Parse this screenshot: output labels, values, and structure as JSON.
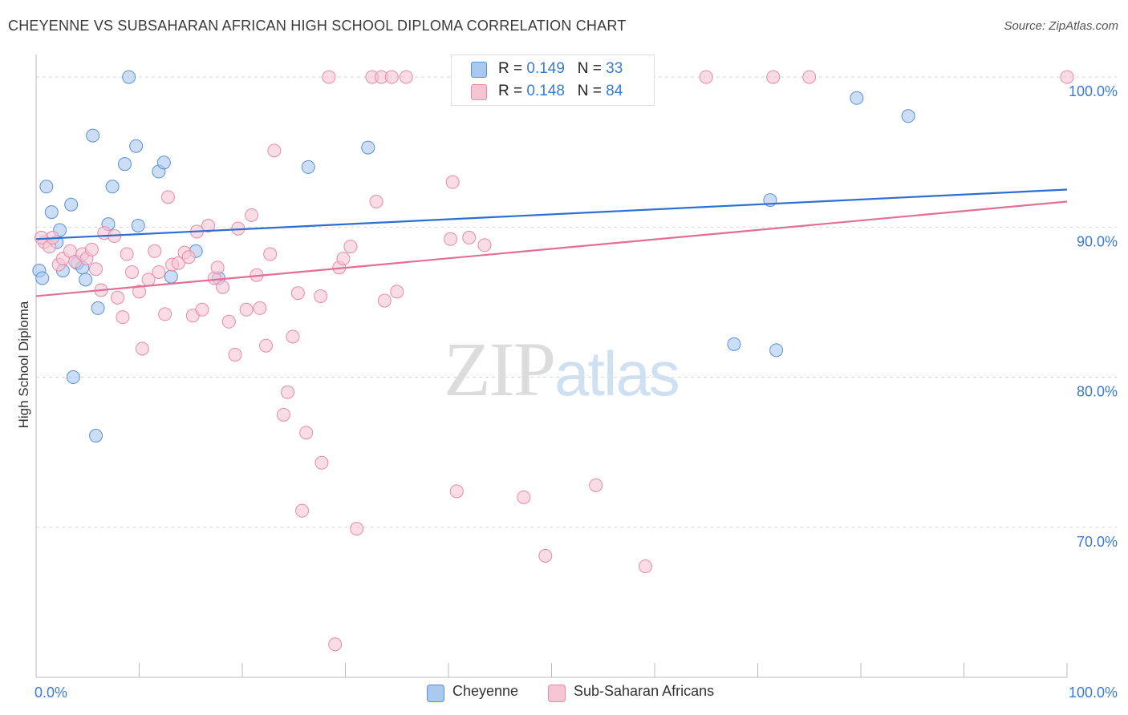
{
  "title": "CHEYENNE VS SUBSAHARAN AFRICAN HIGH SCHOOL DIPLOMA CORRELATION CHART",
  "source": "Source: ZipAtlas.com",
  "watermark": {
    "zip": "ZIP",
    "atlas": "atlas"
  },
  "legend_top": {
    "rows": [
      {
        "r_label": "R = ",
        "r_value": "0.149",
        "n_label": "N = ",
        "n_value": "33"
      },
      {
        "r_label": "R = ",
        "r_value": "0.148",
        "n_label": "N = ",
        "n_value": "84"
      }
    ]
  },
  "legend_bottom": [
    "Cheyenne",
    "Sub-Saharan Africans"
  ],
  "colors": {
    "blue_fill": "#a9c8f0",
    "blue_stroke": "#5b8fd6",
    "blue_line": "#2a6fd1",
    "pink_fill": "#f7c4d4",
    "pink_stroke": "#e88aa8",
    "pink_line": "#e36d97",
    "tick_label": "#3a7bd5",
    "grid": "#d9d9d9"
  },
  "chart_data": {
    "type": "scatter",
    "title": "CHEYENNE VS SUBSAHARAN AFRICAN HIGH SCHOOL DIPLOMA CORRELATION CHART",
    "xlabel": "",
    "ylabel": "High School Diploma",
    "xlim": [
      0,
      100
    ],
    "ylim": [
      60,
      101.5
    ],
    "x_tick_labels": [
      "0.0%",
      "100.0%"
    ],
    "y_ticks": [
      70,
      80,
      90,
      100
    ],
    "y_tick_labels": [
      "70.0%",
      "80.0%",
      "90.0%",
      "100.0%"
    ],
    "grid": "horizontal dashed",
    "legend": "top-center",
    "series": [
      {
        "name": "Cheyenne",
        "color": "blue",
        "trend": {
          "x": [
            0,
            100
          ],
          "y": [
            89.2,
            92.5
          ]
        },
        "points": [
          [
            0.3,
            87.1
          ],
          [
            0.6,
            86.6
          ],
          [
            1.0,
            92.7
          ],
          [
            1.5,
            91.0
          ],
          [
            2.0,
            89.0
          ],
          [
            2.3,
            89.8
          ],
          [
            2.6,
            87.1
          ],
          [
            3.4,
            91.5
          ],
          [
            3.6,
            80.0
          ],
          [
            4.0,
            87.6
          ],
          [
            4.5,
            87.3
          ],
          [
            4.8,
            86.5
          ],
          [
            5.5,
            96.1
          ],
          [
            5.8,
            76.1
          ],
          [
            6.0,
            84.6
          ],
          [
            7.0,
            90.2
          ],
          [
            7.4,
            92.7
          ],
          [
            8.6,
            94.2
          ],
          [
            9.0,
            100.0
          ],
          [
            9.7,
            95.4
          ],
          [
            9.9,
            90.1
          ],
          [
            11.9,
            93.7
          ],
          [
            12.4,
            94.3
          ],
          [
            13.1,
            86.7
          ],
          [
            15.5,
            88.4
          ],
          [
            17.7,
            86.6
          ],
          [
            26.4,
            94.0
          ],
          [
            32.2,
            95.3
          ],
          [
            67.7,
            82.2
          ],
          [
            71.2,
            91.8
          ],
          [
            71.8,
            81.8
          ],
          [
            79.6,
            98.6
          ],
          [
            84.6,
            97.4
          ]
        ]
      },
      {
        "name": "Sub-Saharan Africans",
        "color": "pink",
        "trend": {
          "x": [
            0,
            100
          ],
          "y": [
            85.4,
            91.7
          ]
        },
        "points": [
          [
            0.8,
            89.0
          ],
          [
            1.3,
            88.7
          ],
          [
            1.6,
            89.3
          ],
          [
            2.2,
            87.5
          ],
          [
            2.6,
            87.9
          ],
          [
            3.3,
            88.4
          ],
          [
            3.8,
            87.7
          ],
          [
            4.5,
            88.2
          ],
          [
            4.9,
            87.9
          ],
          [
            5.4,
            88.5
          ],
          [
            5.8,
            87.2
          ],
          [
            6.3,
            85.8
          ],
          [
            6.6,
            89.6
          ],
          [
            7.6,
            89.4
          ],
          [
            7.9,
            85.3
          ],
          [
            8.4,
            84.0
          ],
          [
            8.8,
            88.2
          ],
          [
            9.3,
            87.0
          ],
          [
            10.0,
            85.7
          ],
          [
            10.3,
            81.9
          ],
          [
            10.9,
            86.5
          ],
          [
            11.5,
            88.4
          ],
          [
            11.9,
            87.0
          ],
          [
            12.5,
            84.2
          ],
          [
            12.8,
            92.0
          ],
          [
            13.2,
            87.5
          ],
          [
            13.8,
            87.6
          ],
          [
            14.4,
            88.3
          ],
          [
            14.8,
            88.0
          ],
          [
            15.2,
            84.1
          ],
          [
            15.6,
            89.7
          ],
          [
            16.1,
            84.5
          ],
          [
            16.7,
            90.1
          ],
          [
            17.3,
            86.6
          ],
          [
            17.6,
            87.3
          ],
          [
            18.1,
            86.0
          ],
          [
            18.7,
            83.7
          ],
          [
            19.3,
            81.5
          ],
          [
            19.6,
            89.9
          ],
          [
            20.4,
            84.5
          ],
          [
            20.9,
            90.8
          ],
          [
            21.4,
            86.8
          ],
          [
            21.7,
            84.6
          ],
          [
            22.3,
            82.1
          ],
          [
            22.7,
            88.2
          ],
          [
            23.1,
            95.1
          ],
          [
            24.0,
            77.5
          ],
          [
            24.4,
            79.0
          ],
          [
            24.9,
            82.7
          ],
          [
            25.4,
            85.6
          ],
          [
            25.8,
            71.1
          ],
          [
            26.2,
            76.3
          ],
          [
            27.6,
            85.4
          ],
          [
            27.7,
            74.3
          ],
          [
            28.4,
            100.0
          ],
          [
            29.0,
            62.2
          ],
          [
            29.4,
            87.3
          ],
          [
            29.8,
            87.9
          ],
          [
            30.5,
            88.7
          ],
          [
            31.1,
            69.9
          ],
          [
            32.6,
            100.0
          ],
          [
            33.0,
            91.7
          ],
          [
            33.5,
            100.0
          ],
          [
            33.8,
            85.1
          ],
          [
            34.5,
            100.0
          ],
          [
            35.0,
            85.7
          ],
          [
            35.9,
            100.0
          ],
          [
            40.2,
            89.2
          ],
          [
            40.4,
            93.0
          ],
          [
            40.8,
            72.4
          ],
          [
            42.0,
            89.3
          ],
          [
            43.5,
            88.8
          ],
          [
            47.3,
            72.0
          ],
          [
            49.4,
            68.1
          ],
          [
            50.4,
            100.0
          ],
          [
            50.8,
            99.2
          ],
          [
            54.3,
            72.8
          ],
          [
            55.1,
            99.3
          ],
          [
            59.1,
            67.4
          ],
          [
            65.0,
            100.0
          ],
          [
            71.5,
            100.0
          ],
          [
            75.0,
            100.0
          ],
          [
            100.0,
            100.0
          ],
          [
            0.5,
            89.3
          ]
        ]
      }
    ]
  }
}
